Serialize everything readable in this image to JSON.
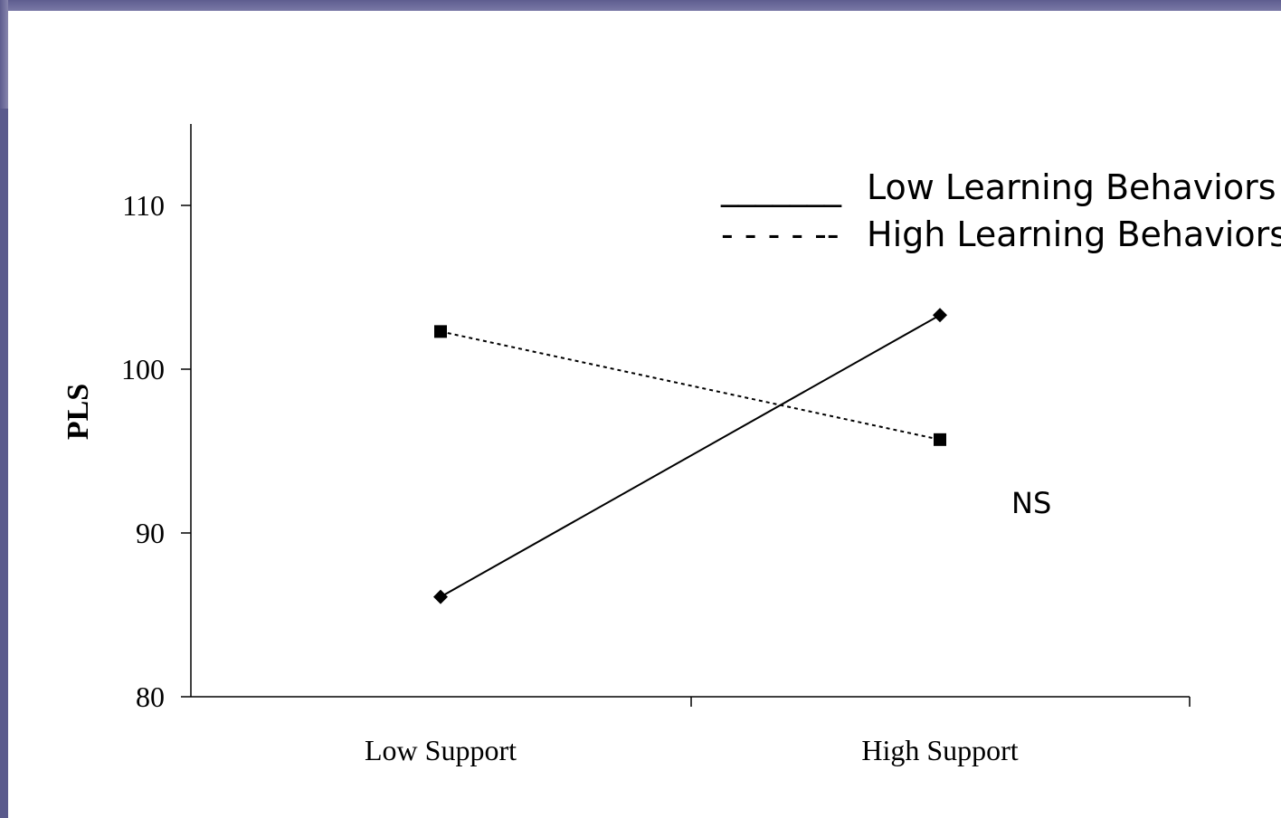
{
  "slide": {
    "accent_color": "#5e5d8f"
  },
  "chart_data": {
    "type": "line",
    "title": "",
    "xlabel": "",
    "ylabel": "PLS",
    "categories": [
      "Low Support",
      "High Support"
    ],
    "ylim": [
      80,
      115
    ],
    "yticks": [
      {
        "value": 80,
        "label": "80"
      },
      {
        "value": 90,
        "label": "90"
      },
      {
        "value": 100,
        "label": "100"
      },
      {
        "value": 110,
        "label": "110"
      }
    ],
    "grid": false,
    "legend_position": "top-right",
    "series": [
      {
        "name": "Low Learning Behaviors",
        "legend_sample": "_______",
        "line_style": "solid",
        "marker": "diamond",
        "values": [
          86.1,
          103.3
        ]
      },
      {
        "name": "High Learning Behaviors",
        "legend_sample": "- - - - --",
        "line_style": "dashed",
        "marker": "square",
        "values": [
          102.3,
          95.7
        ]
      }
    ],
    "annotations": [
      {
        "text": "NS"
      }
    ]
  }
}
